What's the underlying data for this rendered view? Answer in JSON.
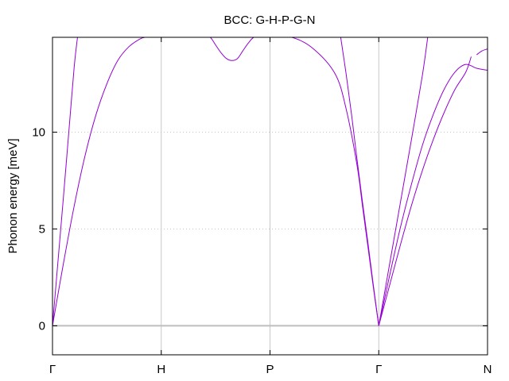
{
  "chart_data": {
    "type": "line",
    "title": "BCC: G-H-P-G-N",
    "xlabel": "",
    "ylabel": "Phonon energy [meV]",
    "ylim": [
      -1.5,
      14.9
    ],
    "yticks": [
      0,
      5,
      10
    ],
    "grid": {
      "x": true,
      "y": true
    },
    "legend": "none",
    "colors": {
      "band": "#9400d3",
      "zero_line": "#bebebe",
      "grid": "#c8c8c8"
    },
    "high_symmetry_points": [
      {
        "label": "Γ",
        "x": 0.0
      },
      {
        "label": "H",
        "x": 1.0
      },
      {
        "label": "P",
        "x": 2.0
      },
      {
        "label": "Γ",
        "x": 3.0
      },
      {
        "label": "N",
        "x": 4.0
      }
    ],
    "series": [
      {
        "x": [
          0,
          0.05,
          0.1,
          0.15,
          0.2,
          0.23
        ],
        "y": [
          0,
          3.3,
          6.6,
          10.0,
          13.4,
          14.9
        ]
      },
      {
        "x": [
          0,
          0.1,
          0.2,
          0.3,
          0.4,
          0.5,
          0.6,
          0.7,
          0.8,
          0.85,
          0.9,
          1.0,
          1.2,
          1.4,
          1.45,
          1.5,
          1.55,
          1.6,
          1.65,
          1.7,
          1.75,
          1.8,
          1.85,
          1.9,
          2.0,
          2.2,
          2.4,
          2.6,
          2.7,
          2.8,
          2.85,
          2.9,
          2.95,
          3.0
        ],
        "y": [
          0,
          3.2,
          6.2,
          8.8,
          10.9,
          12.5,
          13.7,
          14.4,
          14.8,
          14.9,
          14.9,
          14.9,
          14.9,
          14.9,
          14.9,
          14.5,
          14.1,
          13.8,
          13.7,
          13.8,
          14.2,
          14.6,
          14.9,
          14.9,
          14.9,
          14.9,
          14.3,
          13.0,
          11.2,
          8.3,
          6.2,
          4.1,
          2.0,
          0
        ]
      },
      {
        "x": [
          2.65,
          2.7,
          2.75,
          2.8,
          2.85,
          2.9,
          2.95,
          3.0
        ],
        "y": [
          14.9,
          13.0,
          10.9,
          8.6,
          6.4,
          4.3,
          2.1,
          0
        ]
      },
      {
        "x": [
          3.0,
          3.1,
          3.2,
          3.3,
          3.4,
          3.45
        ],
        "y": [
          0,
          3.2,
          6.4,
          9.6,
          12.9,
          14.9
        ]
      },
      {
        "x": [
          3.0,
          3.1,
          3.2,
          3.3,
          3.4,
          3.5,
          3.6,
          3.7,
          3.8,
          3.9,
          4.0
        ],
        "y": [
          0,
          2.6,
          5.1,
          7.3,
          9.3,
          10.9,
          12.2,
          13.1,
          13.5,
          13.3,
          13.2
        ]
      },
      {
        "x": [
          3.0,
          3.1,
          3.2,
          3.3,
          3.4,
          3.5,
          3.6,
          3.7,
          3.8,
          3.85
        ],
        "y": [
          0,
          2.1,
          4.2,
          6.2,
          8.0,
          9.6,
          11.0,
          12.2,
          13.1,
          13.9
        ]
      },
      {
        "x": [
          3.9,
          3.95,
          4.0
        ],
        "y": [
          14.0,
          14.2,
          14.3
        ]
      }
    ]
  }
}
